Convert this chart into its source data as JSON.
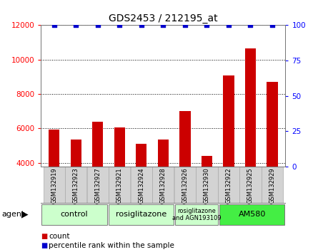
{
  "title": "GDS2453 / 212195_at",
  "samples": [
    "GSM132919",
    "GSM132923",
    "GSM132927",
    "GSM132921",
    "GSM132924",
    "GSM132928",
    "GSM132926",
    "GSM132930",
    "GSM132922",
    "GSM132925",
    "GSM132929"
  ],
  "counts": [
    5950,
    5350,
    6400,
    6050,
    5100,
    5350,
    7000,
    4400,
    9100,
    10650,
    8700
  ],
  "percentiles": [
    100,
    100,
    100,
    100,
    100,
    100,
    100,
    100,
    100,
    100,
    100
  ],
  "bar_color": "#cc0000",
  "dot_color": "#0000cc",
  "ylim_left": [
    3800,
    12000
  ],
  "ylim_right": [
    0,
    100
  ],
  "yticks_left": [
    4000,
    6000,
    8000,
    10000,
    12000
  ],
  "yticks_right": [
    0,
    25,
    50,
    75,
    100
  ],
  "agent_groups": [
    {
      "label": "control",
      "start": 0,
      "end": 3,
      "color": "#ccffcc",
      "fontsize": 8
    },
    {
      "label": "rosiglitazone",
      "start": 3,
      "end": 6,
      "color": "#ccffcc",
      "fontsize": 8
    },
    {
      "label": "rosiglitazone\nand AGN193109",
      "start": 6,
      "end": 8,
      "color": "#ccffcc",
      "fontsize": 6
    },
    {
      "label": "AM580",
      "start": 8,
      "end": 11,
      "color": "#44ee44",
      "fontsize": 8
    }
  ],
  "legend_count_label": "count",
  "legend_pct_label": "percentile rank within the sample",
  "agent_label": "agent",
  "background_color": "#ffffff",
  "sample_bg_color": "#d3d3d3"
}
